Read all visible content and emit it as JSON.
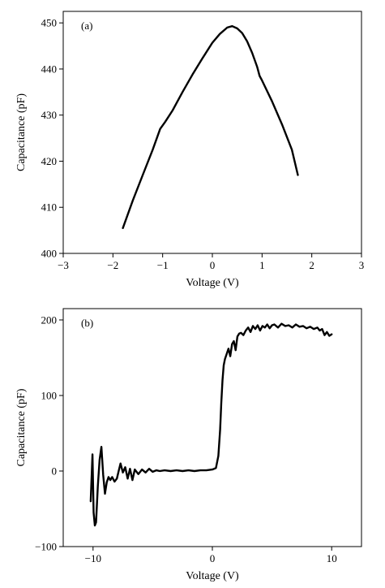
{
  "chart_data": [
    {
      "type": "line",
      "panel_label": "(a)",
      "xlabel": "Voltage (V)",
      "ylabel": "Capacitance (pF)",
      "xlim": [
        -3,
        3
      ],
      "ylim": [
        400,
        452.5
      ],
      "xticks": [
        -3,
        -2,
        -1,
        0,
        1,
        2,
        3
      ],
      "xtick_labels": [
        "−3",
        "−2",
        "−1",
        "0",
        "1",
        "2",
        "3"
      ],
      "yticks": [
        400,
        410,
        420,
        430,
        440,
        450
      ],
      "ytick_labels": [
        "400",
        "410",
        "420",
        "430",
        "440",
        "450"
      ],
      "grid": false,
      "series": [
        {
          "x": [
            -1.8,
            -1.6,
            -1.4,
            -1.2,
            -1.05,
            -0.95,
            -0.8,
            -0.6,
            -0.4,
            -0.2,
            0.0,
            0.15,
            0.3,
            0.4,
            0.5,
            0.6,
            0.7,
            0.8,
            0.9,
            0.95,
            1.0,
            1.2,
            1.4,
            1.6,
            1.72
          ],
          "y": [
            405.5,
            411.5,
            417.0,
            422.5,
            427.0,
            428.5,
            431.0,
            435.0,
            438.8,
            442.3,
            445.7,
            447.6,
            449.0,
            449.3,
            448.8,
            447.8,
            446.0,
            443.5,
            440.5,
            438.5,
            437.5,
            433.0,
            428.0,
            422.5,
            417.0
          ]
        }
      ]
    },
    {
      "type": "line",
      "panel_label": "(b)",
      "xlabel": "Voltage (V)",
      "ylabel": "Capacitance (pF)",
      "xlim": [
        -12.5,
        12.5
      ],
      "ylim": [
        -100,
        215
      ],
      "xticks": [
        -10,
        0,
        10
      ],
      "xtick_labels": [
        "−10",
        "0",
        "10"
      ],
      "yticks": [
        -100,
        0,
        100,
        200
      ],
      "ytick_labels": [
        "−100",
        "0",
        "100",
        "200"
      ],
      "grid": false,
      "series": [
        {
          "x": [
            -10.2,
            -10.05,
            -9.95,
            -9.85,
            -9.75,
            -9.6,
            -9.45,
            -9.3,
            -9.15,
            -9.0,
            -8.85,
            -8.7,
            -8.55,
            -8.4,
            -8.2,
            -8.0,
            -7.85,
            -7.7,
            -7.5,
            -7.3,
            -7.1,
            -6.9,
            -6.7,
            -6.5,
            -6.2,
            -5.9,
            -5.6,
            -5.3,
            -5.0,
            -4.7,
            -4.4,
            -4.0,
            -3.5,
            -3.0,
            -2.5,
            -2.0,
            -1.5,
            -1.0,
            -0.5,
            0.0,
            0.3,
            0.5,
            0.65,
            0.75,
            0.85,
            0.95,
            1.05,
            1.2,
            1.35,
            1.5,
            1.65,
            1.8,
            1.95,
            2.1,
            2.25,
            2.4,
            2.6,
            2.8,
            3.0,
            3.2,
            3.4,
            3.6,
            3.8,
            4.0,
            4.2,
            4.4,
            4.6,
            4.8,
            5.0,
            5.2,
            5.5,
            5.8,
            6.1,
            6.4,
            6.7,
            7.0,
            7.3,
            7.6,
            7.9,
            8.2,
            8.5,
            8.8,
            9.0,
            9.2,
            9.4,
            9.6,
            9.8,
            10.0
          ],
          "y": [
            -40,
            22,
            -55,
            -72,
            -68,
            -20,
            15,
            32,
            -5,
            -30,
            -15,
            -8,
            -12,
            -8,
            -14,
            -10,
            0,
            10,
            -2,
            5,
            -10,
            3,
            -12,
            2,
            -4,
            2,
            -2,
            3,
            -1,
            1,
            0,
            1,
            0,
            1,
            0,
            1,
            0,
            1,
            1,
            2,
            4,
            20,
            55,
            90,
            120,
            140,
            148,
            155,
            162,
            152,
            168,
            172,
            160,
            178,
            182,
            183,
            180,
            186,
            190,
            184,
            192,
            188,
            193,
            186,
            192,
            190,
            194,
            189,
            193,
            194,
            190,
            195,
            192,
            193,
            190,
            194,
            191,
            192,
            189,
            191,
            188,
            190,
            186,
            188,
            180,
            184,
            179,
            181
          ]
        }
      ]
    }
  ]
}
